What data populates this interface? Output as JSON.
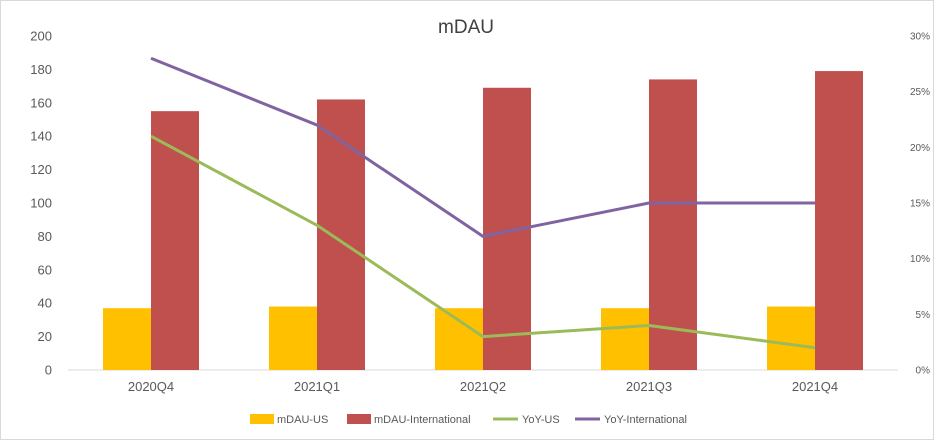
{
  "chart_data": {
    "type": "bar",
    "title": "mDAU",
    "xlabel": "",
    "ylabel": "",
    "categories": [
      "2020Q4",
      "2021Q1",
      "2021Q2",
      "2021Q3",
      "2021Q4"
    ],
    "ylim": [
      0,
      200
    ],
    "yticks": [
      0,
      20,
      40,
      60,
      80,
      100,
      120,
      140,
      160,
      180,
      200
    ],
    "y2lim": [
      0,
      30
    ],
    "y2ticks": [
      "0%",
      "5%",
      "10%",
      "15%",
      "20%",
      "25%",
      "30%"
    ],
    "grid": false,
    "legend_position": "bottom",
    "series": [
      {
        "name": "mDAU-US",
        "type": "bar",
        "axis": "left",
        "color": "#FFC000",
        "values": [
          37,
          38,
          37,
          37,
          38
        ]
      },
      {
        "name": "mDAU-International",
        "type": "bar",
        "axis": "left",
        "color": "#C0504D",
        "values": [
          155,
          162,
          169,
          174,
          179
        ]
      },
      {
        "name": "YoY-US",
        "type": "line",
        "axis": "right",
        "color": "#9BBB59",
        "values": [
          21,
          13,
          3,
          4,
          2
        ]
      },
      {
        "name": "YoY-International",
        "type": "line",
        "axis": "right",
        "color": "#8064A2",
        "values": [
          28,
          22,
          12,
          15,
          15
        ]
      }
    ]
  }
}
